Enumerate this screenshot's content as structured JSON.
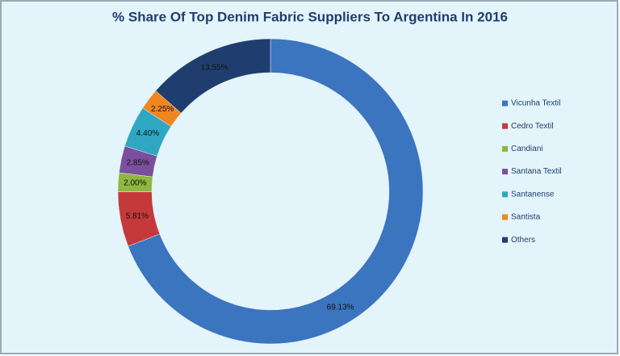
{
  "chart_data": {
    "type": "donut",
    "title": "% Share Of Top Denim Fabric Suppliers To Argentina In 2016",
    "categories": [
      "Vicunha Textil",
      "Cedro Textil",
      "Candiani",
      "Santana Textil",
      "Santanense",
      "Santista",
      "Others"
    ],
    "values": [
      69.13,
      5.81,
      2.0,
      2.85,
      4.4,
      2.25,
      13.55
    ],
    "value_labels": [
      "69.13%",
      "5.81%",
      "2.00%",
      "2.85%",
      "4.40%",
      "2.25%",
      "13.55%"
    ],
    "colors": [
      "#3b74bf",
      "#c6393a",
      "#8fb63e",
      "#7a4f9e",
      "#2fa7c3",
      "#f0861e",
      "#1f3e6f"
    ],
    "legend": "right"
  }
}
